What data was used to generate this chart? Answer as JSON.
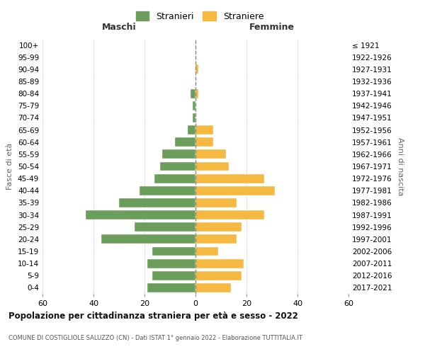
{
  "age_groups": [
    "0-4",
    "5-9",
    "10-14",
    "15-19",
    "20-24",
    "25-29",
    "30-34",
    "35-39",
    "40-44",
    "45-49",
    "50-54",
    "55-59",
    "60-64",
    "65-69",
    "70-74",
    "75-79",
    "80-84",
    "85-89",
    "90-94",
    "95-99",
    "100+"
  ],
  "birth_years": [
    "2017-2021",
    "2012-2016",
    "2007-2011",
    "2002-2006",
    "1997-2001",
    "1992-1996",
    "1987-1991",
    "1982-1986",
    "1977-1981",
    "1972-1976",
    "1967-1971",
    "1962-1966",
    "1957-1961",
    "1952-1956",
    "1947-1951",
    "1942-1946",
    "1937-1941",
    "1932-1936",
    "1927-1931",
    "1922-1926",
    "≤ 1921"
  ],
  "males": [
    19,
    17,
    19,
    17,
    37,
    24,
    43,
    30,
    22,
    16,
    14,
    13,
    8,
    3,
    1,
    1,
    2,
    0,
    0,
    0,
    0
  ],
  "females": [
    14,
    18,
    19,
    9,
    16,
    18,
    27,
    16,
    31,
    27,
    13,
    12,
    7,
    7,
    0,
    0,
    1,
    0,
    1,
    0,
    0
  ],
  "male_color": "#6a9e5a",
  "female_color": "#f5b942",
  "xlim": 60,
  "title": "Popolazione per cittadinanza straniera per età e sesso - 2022",
  "subtitle": "COMUNE DI COSTIGLIOLE SALUZZO (CN) - Dati ISTAT 1° gennaio 2022 - Elaborazione TUTTITALIA.IT",
  "ylabel_left": "Fasce di età",
  "ylabel_right": "Anni di nascita",
  "xlabel_left": "Maschi",
  "xlabel_right": "Femmine",
  "legend_male": "Stranieri",
  "legend_female": "Straniere",
  "background_color": "#ffffff",
  "grid_color": "#cccccc"
}
